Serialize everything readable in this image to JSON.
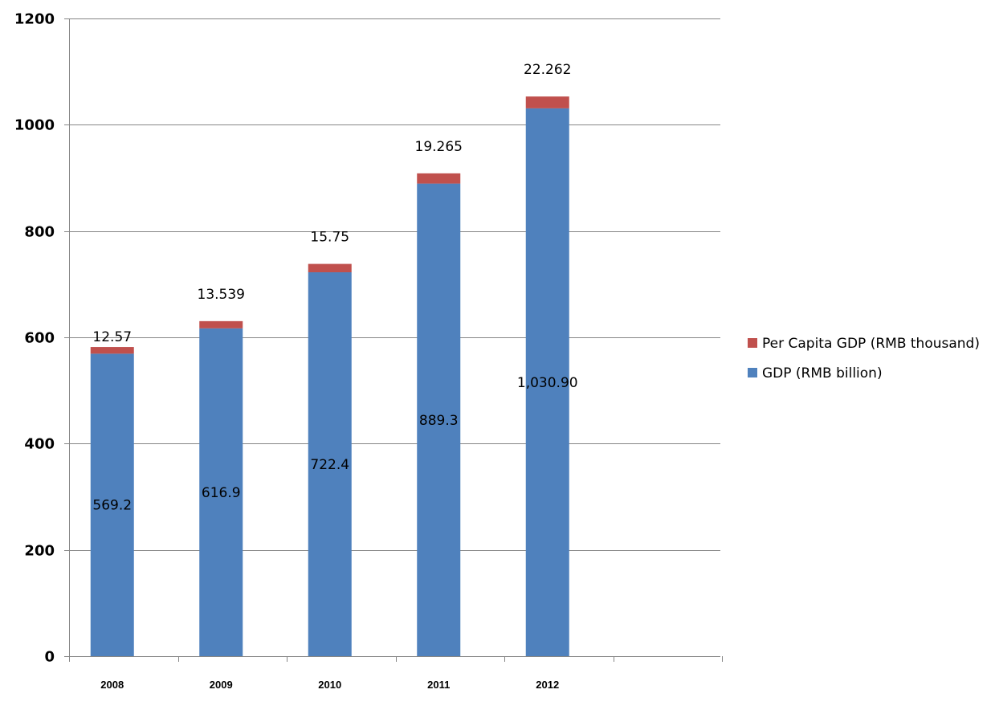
{
  "chart_data": {
    "type": "bar",
    "stacked": true,
    "categories": [
      "2008",
      "2009",
      "2010",
      "2011",
      "2012"
    ],
    "series": [
      {
        "name": "GDP (RMB billion)",
        "color": "#4F81BD",
        "values": [
          569.2,
          616.9,
          722.4,
          889.3,
          1030.9
        ],
        "labels": [
          "569.2",
          "616.9",
          "722.4",
          "889.3",
          "1,030.90"
        ]
      },
      {
        "name": "Per Capita GDP (RMB thousand)",
        "color": "#C0504D",
        "values": [
          12.57,
          13.539,
          15.75,
          19.265,
          22.262
        ],
        "labels": [
          "12.57",
          "13.539",
          "15.75",
          "19.265",
          "22.262"
        ]
      }
    ],
    "ylim": [
      0,
      1200
    ],
    "yticks": [
      0,
      200,
      400,
      600,
      800,
      1000,
      1200
    ],
    "ytick_labels": [
      "0",
      "200",
      "400",
      "600",
      "800",
      "1000",
      "1200"
    ],
    "grid": true,
    "legend": "right",
    "title": "",
    "xlabel": "",
    "ylabel": ""
  }
}
